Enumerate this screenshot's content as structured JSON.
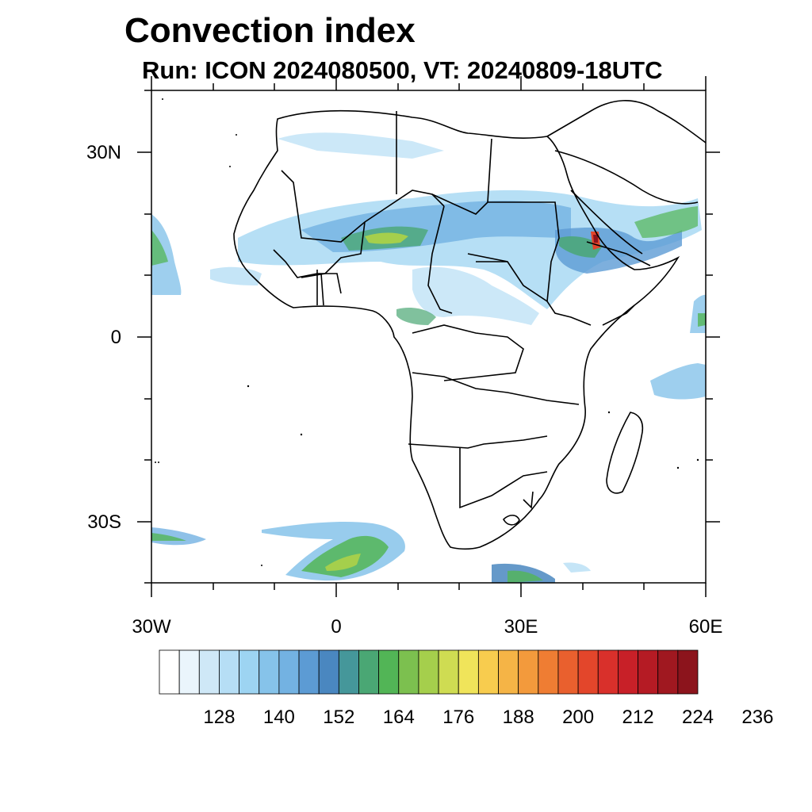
{
  "title": "Convection index",
  "subtitle": "Run: ICON 2024080500,  VT: 20240809-18UTC",
  "map": {
    "region": "Africa",
    "lon_range": [
      -30,
      60
    ],
    "lat_range": [
      -40,
      40
    ],
    "lat_ticks": [
      {
        "value": 30,
        "label": "30N"
      },
      {
        "value": 0,
        "label": "0"
      },
      {
        "value": -30,
        "label": "30S"
      }
    ],
    "lon_ticks": [
      {
        "value": -30,
        "label": "30W"
      },
      {
        "value": 0,
        "label": "0"
      },
      {
        "value": 30,
        "label": "30E"
      },
      {
        "value": 60,
        "label": "60E"
      }
    ]
  },
  "colorbar": {
    "labels": [
      "128",
      "140",
      "152",
      "164",
      "176",
      "188",
      "200",
      "212",
      "224",
      "236"
    ],
    "colors": [
      "#ffffff",
      "#eaf5fc",
      "#cfe8f7",
      "#b6def5",
      "#9dd4f2",
      "#86c3ea",
      "#73b2e2",
      "#5c9bd4",
      "#4a87c0",
      "#45979a",
      "#4aa774",
      "#52b556",
      "#7cc04f",
      "#a5cf4c",
      "#cfdc52",
      "#f0e45a",
      "#f8cc4e",
      "#f5b446",
      "#f39a3c",
      "#ef7d33",
      "#e9602e",
      "#e3462b",
      "#d9302b",
      "#c82028",
      "#b51b24",
      "#a01820",
      "#8c141c"
    ]
  }
}
